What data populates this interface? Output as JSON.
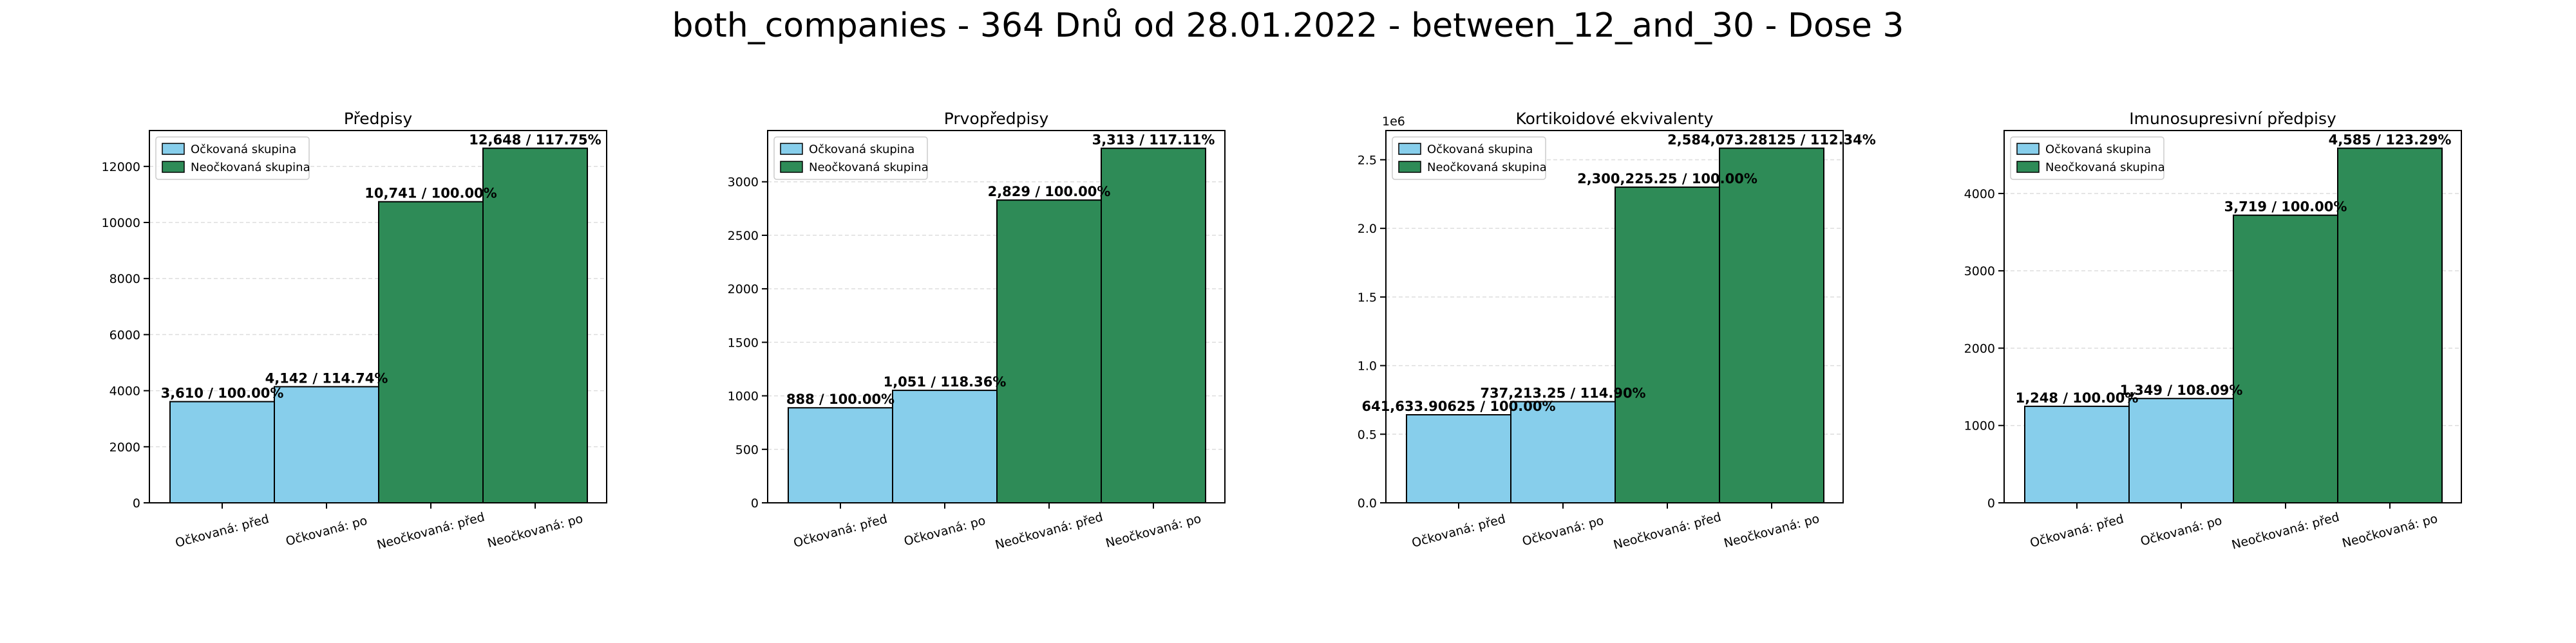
{
  "suptitle": "both_companies - 364 Dnů od 28.01.2022 - between_12_and_30 - Dose 3",
  "colors": {
    "vaccinated": "#87ceeb",
    "unvaccinated": "#2e8b57",
    "edge": "#000000",
    "grid": "#dddddd"
  },
  "legend_labels": [
    "Očkovaná skupina",
    "Neočkovaná skupina"
  ],
  "chart_data": [
    {
      "type": "bar",
      "title": "Předpisy",
      "categories": [
        "Očkovaná: před",
        "Očkovaná: po",
        "Neočkovaná: před",
        "Neočkovaná: po"
      ],
      "values": [
        3610,
        4142,
        10741,
        12648
      ],
      "value_labels": [
        "3,610 / 100.00%",
        "4,142 / 114.74%",
        "10,741 / 100.00%",
        "12,648 / 117.75%"
      ],
      "groups": [
        "vaccinated",
        "vaccinated",
        "unvaccinated",
        "unvaccinated"
      ],
      "ylim": [
        0,
        13280
      ],
      "yticks": [
        0,
        2000,
        4000,
        6000,
        8000,
        10000,
        12000
      ],
      "ytick_labels": [
        "0",
        "2000",
        "4000",
        "6000",
        "8000",
        "10000",
        "12000"
      ],
      "offset_text": "",
      "legend": "top-left",
      "grid": true
    },
    {
      "type": "bar",
      "title": "Prvopředpisy",
      "categories": [
        "Očkovaná: před",
        "Očkovaná: po",
        "Neočkovaná: před",
        "Neočkovaná: po"
      ],
      "values": [
        888,
        1051,
        2829,
        3313
      ],
      "value_labels": [
        "888 / 100.00%",
        "1,051 / 118.36%",
        "2,829 / 100.00%",
        "3,313 / 117.11%"
      ],
      "groups": [
        "vaccinated",
        "vaccinated",
        "unvaccinated",
        "unvaccinated"
      ],
      "ylim": [
        0,
        3479
      ],
      "yticks": [
        0,
        500,
        1000,
        1500,
        2000,
        2500,
        3000
      ],
      "ytick_labels": [
        "0",
        "500",
        "1000",
        "1500",
        "2000",
        "2500",
        "3000"
      ],
      "offset_text": "",
      "legend": "top-left",
      "grid": true
    },
    {
      "type": "bar",
      "title": "Kortikoidové ekvivalenty",
      "categories": [
        "Očkovaná: před",
        "Očkovaná: po",
        "Neočkovaná: před",
        "Neočkovaná: po"
      ],
      "values": [
        641633.90625,
        737213.25,
        2300225.25,
        2584073.28125
      ],
      "value_labels": [
        "641,633.90625 / 100.00%",
        "737,213.25 / 114.90%",
        "2,300,225.25 / 100.00%",
        "2,584,073.28125 / 112.34%"
      ],
      "groups": [
        "vaccinated",
        "vaccinated",
        "unvaccinated",
        "unvaccinated"
      ],
      "ylim": [
        0,
        2713000
      ],
      "yticks": [
        0,
        500000,
        1000000,
        1500000,
        2000000,
        2500000
      ],
      "ytick_labels": [
        "0.0",
        "0.5",
        "1.0",
        "1.5",
        "2.0",
        "2.5"
      ],
      "offset_text": "1e6",
      "legend": "top-left",
      "grid": true
    },
    {
      "type": "bar",
      "title": "Imunosupresivní předpisy",
      "categories": [
        "Očkovaná: před",
        "Očkovaná: po",
        "Neočkovaná: před",
        "Neočkovaná: po"
      ],
      "values": [
        1248,
        1349,
        3719,
        4585
      ],
      "value_labels": [
        "1,248 / 100.00%",
        "1,349 / 108.09%",
        "3,719 / 100.00%",
        "4,585 / 123.29%"
      ],
      "groups": [
        "vaccinated",
        "vaccinated",
        "unvaccinated",
        "unvaccinated"
      ],
      "ylim": [
        0,
        4814
      ],
      "yticks": [
        0,
        1000,
        2000,
        3000,
        4000
      ],
      "ytick_labels": [
        "0",
        "1000",
        "2000",
        "3000",
        "4000"
      ],
      "offset_text": "",
      "legend": "top-left",
      "grid": true
    }
  ]
}
